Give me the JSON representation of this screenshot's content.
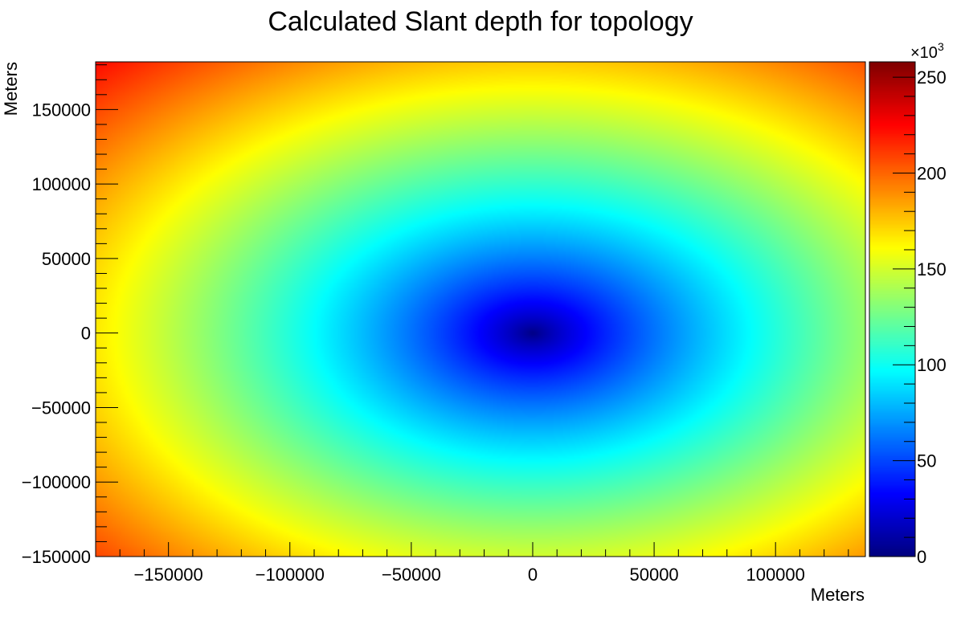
{
  "chart_data": {
    "type": "heatmap",
    "title": "Calculated Slant depth for topology",
    "xlabel": "Meters",
    "ylabel": "Meters",
    "xlim": [
      -180000,
      137000
    ],
    "ylim": [
      -150000,
      182000
    ],
    "x_ticks": [
      -150000,
      -100000,
      -50000,
      0,
      50000,
      100000
    ],
    "y_ticks": [
      -150000,
      -100000,
      -50000,
      0,
      50000,
      100000,
      150000
    ],
    "x_tick_labels": [
      "−150000",
      "−100000",
      "−50000",
      "0",
      "50000",
      "100000"
    ],
    "y_tick_labels": [
      "−150000",
      "−100000",
      "−50000",
      "0",
      "50000",
      "100000",
      "150000"
    ],
    "colorbar": {
      "range": [
        0,
        258
      ],
      "ticks": [
        0,
        50,
        100,
        150,
        200,
        250
      ],
      "tick_labels": [
        "0",
        "50",
        "100",
        "150",
        "200",
        "250"
      ],
      "multiplier_label": "×10",
      "multiplier_exponent": "3",
      "colormap": "jet"
    },
    "field": {
      "description_value_units": "x10^3",
      "center": [
        0,
        0
      ],
      "value_at_center": 0,
      "contour_samples": [
        {
          "x": -80000,
          "y": 0,
          "value": 100
        },
        {
          "x": 0,
          "y": -85000,
          "value": 100
        },
        {
          "x": -157000,
          "y": 0,
          "value": 150
        },
        {
          "x": 0,
          "y": 150000,
          "value": 150
        },
        {
          "x": -180000,
          "y": 182000,
          "value": 258
        },
        {
          "x": -180000,
          "y": -150000,
          "value": 235
        }
      ]
    },
    "grid": false,
    "legend": "none"
  }
}
